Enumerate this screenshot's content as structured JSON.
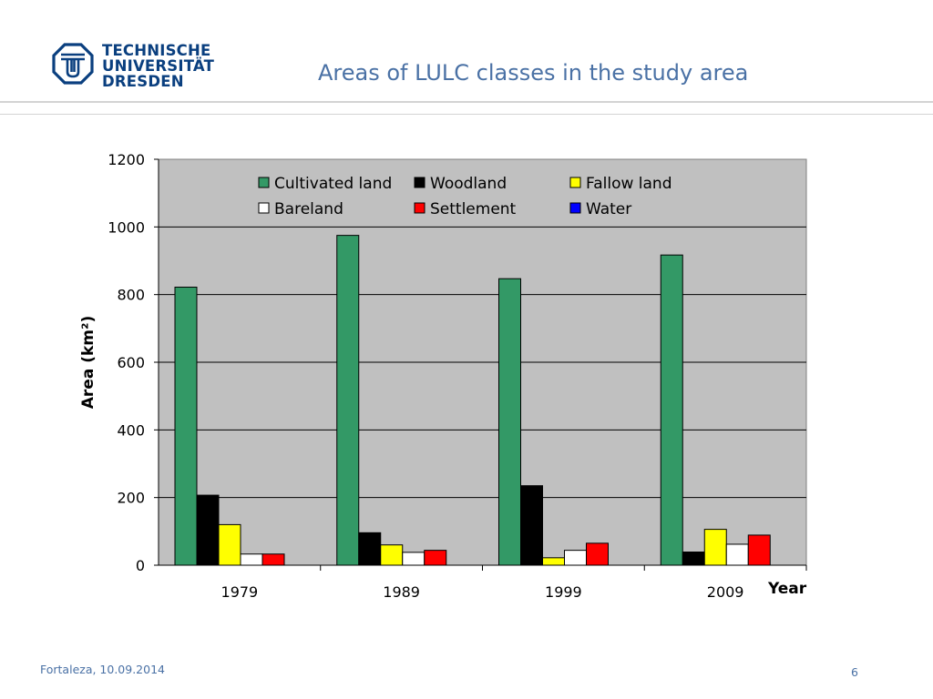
{
  "header": {
    "logo_lines": [
      "TECHNISCHE",
      "UNIVERSITÄT",
      "DRESDEN"
    ],
    "title": "Areas of LULC classes in the study area",
    "logo_icon": "tu-dresden-emblem-icon"
  },
  "footer": {
    "location_date": "Fortaleza, 10.09.2014",
    "page_number": "6"
  },
  "colors": {
    "brand": "#0a3f7f",
    "title": "#4a71a5",
    "plot_bg": "#c0c0c0"
  },
  "chart_data": {
    "type": "bar",
    "title": "",
    "xlabel": "Year",
    "ylabel": "Area (km²)",
    "ylim": [
      0,
      1200
    ],
    "yticks": [
      0,
      200,
      400,
      600,
      800,
      1000,
      1200
    ],
    "categories": [
      "1979",
      "1989",
      "1999",
      "2009"
    ],
    "grid": true,
    "legend_position": "top",
    "series": [
      {
        "name": "Cultivated land",
        "color": "#339966",
        "values": [
          822,
          975,
          847,
          917
        ]
      },
      {
        "name": "Woodland",
        "color": "#000000",
        "values": [
          207,
          96,
          235,
          39
        ]
      },
      {
        "name": "Fallow land",
        "color": "#ffff00",
        "values": [
          120,
          60,
          22,
          106
        ]
      },
      {
        "name": "Bareland",
        "color": "#ffffff",
        "values": [
          33,
          38,
          44,
          62
        ]
      },
      {
        "name": "Settlement",
        "color": "#ff0000",
        "values": [
          33,
          44,
          65,
          89
        ]
      },
      {
        "name": "Water",
        "color": "#0000ff",
        "values": [
          0,
          0,
          0,
          0
        ]
      }
    ]
  }
}
